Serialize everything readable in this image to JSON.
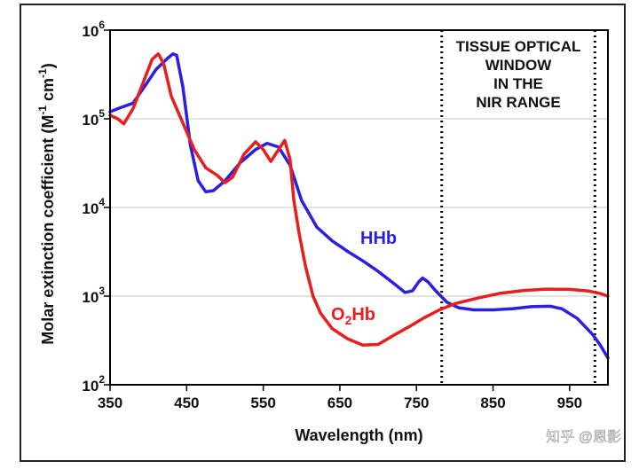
{
  "chart_data": {
    "type": "line",
    "xlabel": "Wavelength (nm)",
    "ylabel_parts": [
      "Molar extinction coefficient (M",
      "-1",
      " cm",
      "-1",
      ")"
    ],
    "xlim": [
      350,
      1000
    ],
    "ylim": [
      100,
      1000000
    ],
    "y_scale": "log",
    "x_ticks": [
      350,
      450,
      550,
      650,
      750,
      850,
      950
    ],
    "x_tick_labels": [
      "350",
      "450",
      "550",
      "650",
      "750",
      "850",
      "950"
    ],
    "y_ticks": [
      100,
      1000,
      10000,
      100000,
      1000000
    ],
    "y_tick_labels": [
      {
        "base": "10",
        "exp": "2"
      },
      {
        "base": "10",
        "exp": "3"
      },
      {
        "base": "10",
        "exp": "4"
      },
      {
        "base": "10",
        "exp": "5"
      },
      {
        "base": "10",
        "exp": "6"
      }
    ],
    "grid": true,
    "series": [
      {
        "label_parts": [
          "HHb"
        ],
        "color": "#2b1fe0",
        "points": [
          [
            350,
            120000
          ],
          [
            365,
            135000
          ],
          [
            380,
            150000
          ],
          [
            395,
            230000
          ],
          [
            410,
            360000
          ],
          [
            425,
            480000
          ],
          [
            432,
            540000
          ],
          [
            437,
            520000
          ],
          [
            445,
            230000
          ],
          [
            455,
            50000
          ],
          [
            465,
            20000
          ],
          [
            475,
            15000
          ],
          [
            485,
            15500
          ],
          [
            500,
            20000
          ],
          [
            520,
            32000
          ],
          [
            540,
            45000
          ],
          [
            555,
            53000
          ],
          [
            570,
            48000
          ],
          [
            585,
            30000
          ],
          [
            600,
            12000
          ],
          [
            620,
            6000
          ],
          [
            640,
            4200
          ],
          [
            660,
            3200
          ],
          [
            680,
            2500
          ],
          [
            700,
            1900
          ],
          [
            720,
            1400
          ],
          [
            735,
            1100
          ],
          [
            745,
            1150
          ],
          [
            753,
            1450
          ],
          [
            758,
            1600
          ],
          [
            765,
            1450
          ],
          [
            775,
            1150
          ],
          [
            790,
            850
          ],
          [
            805,
            740
          ],
          [
            825,
            700
          ],
          [
            850,
            700
          ],
          [
            875,
            720
          ],
          [
            900,
            760
          ],
          [
            925,
            770
          ],
          [
            940,
            720
          ],
          [
            960,
            560
          ],
          [
            980,
            370
          ],
          [
            990,
            280
          ],
          [
            1000,
            200
          ]
        ]
      },
      {
        "label_parts": [
          "O",
          "2",
          "Hb"
        ],
        "color": "#e81e1e",
        "points": [
          [
            350,
            110000
          ],
          [
            360,
            100000
          ],
          [
            368,
            88000
          ],
          [
            380,
            130000
          ],
          [
            395,
            280000
          ],
          [
            405,
            470000
          ],
          [
            413,
            540000
          ],
          [
            420,
            420000
          ],
          [
            430,
            180000
          ],
          [
            445,
            90000
          ],
          [
            460,
            45000
          ],
          [
            475,
            28000
          ],
          [
            490,
            23000
          ],
          [
            500,
            19000
          ],
          [
            510,
            22000
          ],
          [
            525,
            40000
          ],
          [
            540,
            55000
          ],
          [
            550,
            45000
          ],
          [
            560,
            33000
          ],
          [
            570,
            45000
          ],
          [
            578,
            57000
          ],
          [
            585,
            35000
          ],
          [
            590,
            12000
          ],
          [
            597,
            5000
          ],
          [
            605,
            2200
          ],
          [
            615,
            1000
          ],
          [
            625,
            640
          ],
          [
            640,
            430
          ],
          [
            660,
            330
          ],
          [
            680,
            280
          ],
          [
            700,
            285
          ],
          [
            720,
            360
          ],
          [
            740,
            450
          ],
          [
            760,
            570
          ],
          [
            780,
            700
          ],
          [
            800,
            820
          ],
          [
            830,
            950
          ],
          [
            860,
            1080
          ],
          [
            890,
            1160
          ],
          [
            920,
            1200
          ],
          [
            950,
            1190
          ],
          [
            975,
            1140
          ],
          [
            990,
            1070
          ],
          [
            1000,
            1000
          ]
        ]
      }
    ],
    "window": {
      "x_start": 783,
      "x_end": 983,
      "lines": [
        "TISSUE OPTICAL",
        "WINDOW",
        "IN THE",
        "NIR RANGE"
      ]
    }
  },
  "watermark": "知乎 @恩影"
}
